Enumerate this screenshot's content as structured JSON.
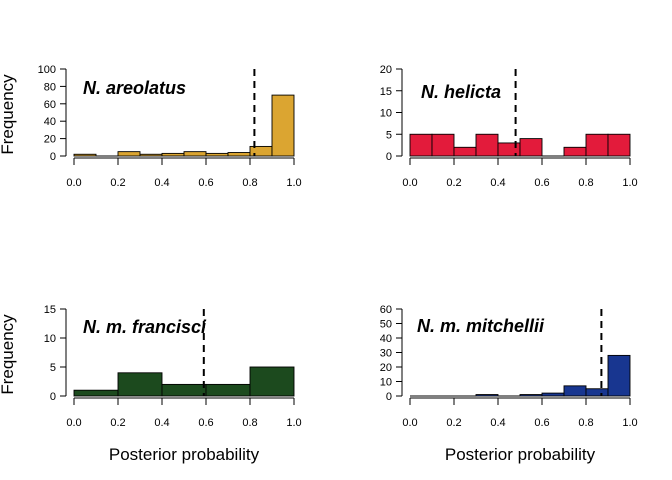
{
  "figure": {
    "ylabel": "Frequency",
    "xlabel": "Posterior probability"
  },
  "chart_data": [
    {
      "type": "bar",
      "title": "N. areolatus",
      "ylabel": "Frequency",
      "xlabel": "",
      "bin_edges": [
        0.0,
        0.1,
        0.2,
        0.3,
        0.4,
        0.5,
        0.6,
        0.7,
        0.8,
        0.9,
        1.0
      ],
      "values": [
        2,
        0,
        5,
        2,
        3,
        5,
        3,
        4,
        11,
        70
      ],
      "ylim": [
        0,
        100
      ],
      "yticks": [
        0,
        20,
        40,
        60,
        80,
        100
      ],
      "xlim": [
        0,
        1
      ],
      "xticks": [
        "0.0",
        "0.2",
        "0.4",
        "0.6",
        "0.8",
        "1.0"
      ],
      "threshold": 0.82,
      "color": "#DBA531"
    },
    {
      "type": "bar",
      "title": "N. helicta",
      "ylabel": "",
      "xlabel": "",
      "bin_edges": [
        0.0,
        0.1,
        0.2,
        0.3,
        0.4,
        0.5,
        0.6,
        0.7,
        0.8,
        0.9,
        1.0
      ],
      "values": [
        5,
        5,
        2,
        5,
        3,
        4,
        0,
        2,
        5,
        5
      ],
      "ylim": [
        0,
        20
      ],
      "yticks": [
        0,
        5,
        10,
        15,
        20
      ],
      "xlim": [
        0,
        1
      ],
      "xticks": [
        "0.0",
        "0.2",
        "0.4",
        "0.6",
        "0.8",
        "1.0"
      ],
      "threshold": 0.48,
      "color": "#E31B3B"
    },
    {
      "type": "bar",
      "title": "N. m. francisci",
      "ylabel": "Frequency",
      "xlabel": "Posterior probability",
      "bin_edges": [
        0.0,
        0.2,
        0.4,
        0.6,
        0.8,
        1.0
      ],
      "values": [
        1,
        4,
        2,
        2,
        5
      ],
      "ylim": [
        0,
        15
      ],
      "yticks": [
        0,
        5,
        10,
        15
      ],
      "xlim": [
        0,
        1
      ],
      "xticks": [
        "0.0",
        "0.2",
        "0.4",
        "0.6",
        "0.8",
        "1.0"
      ],
      "threshold": 0.59,
      "color": "#1C4A1E"
    },
    {
      "type": "bar",
      "title": "N. m. mitchellii",
      "ylabel": "",
      "xlabel": "Posterior probability",
      "bin_edges": [
        0.0,
        0.1,
        0.2,
        0.3,
        0.4,
        0.5,
        0.6,
        0.7,
        0.8,
        0.9,
        1.0
      ],
      "values": [
        0,
        0,
        0,
        1,
        0,
        1,
        2,
        7,
        5,
        28
      ],
      "ylim": [
        0,
        60
      ],
      "yticks": [
        0,
        10,
        20,
        30,
        40,
        50,
        60
      ],
      "xlim": [
        0,
        1
      ],
      "xticks": [
        "0.0",
        "0.2",
        "0.4",
        "0.6",
        "0.8",
        "1.0"
      ],
      "threshold": 0.87,
      "color": "#183690"
    }
  ]
}
